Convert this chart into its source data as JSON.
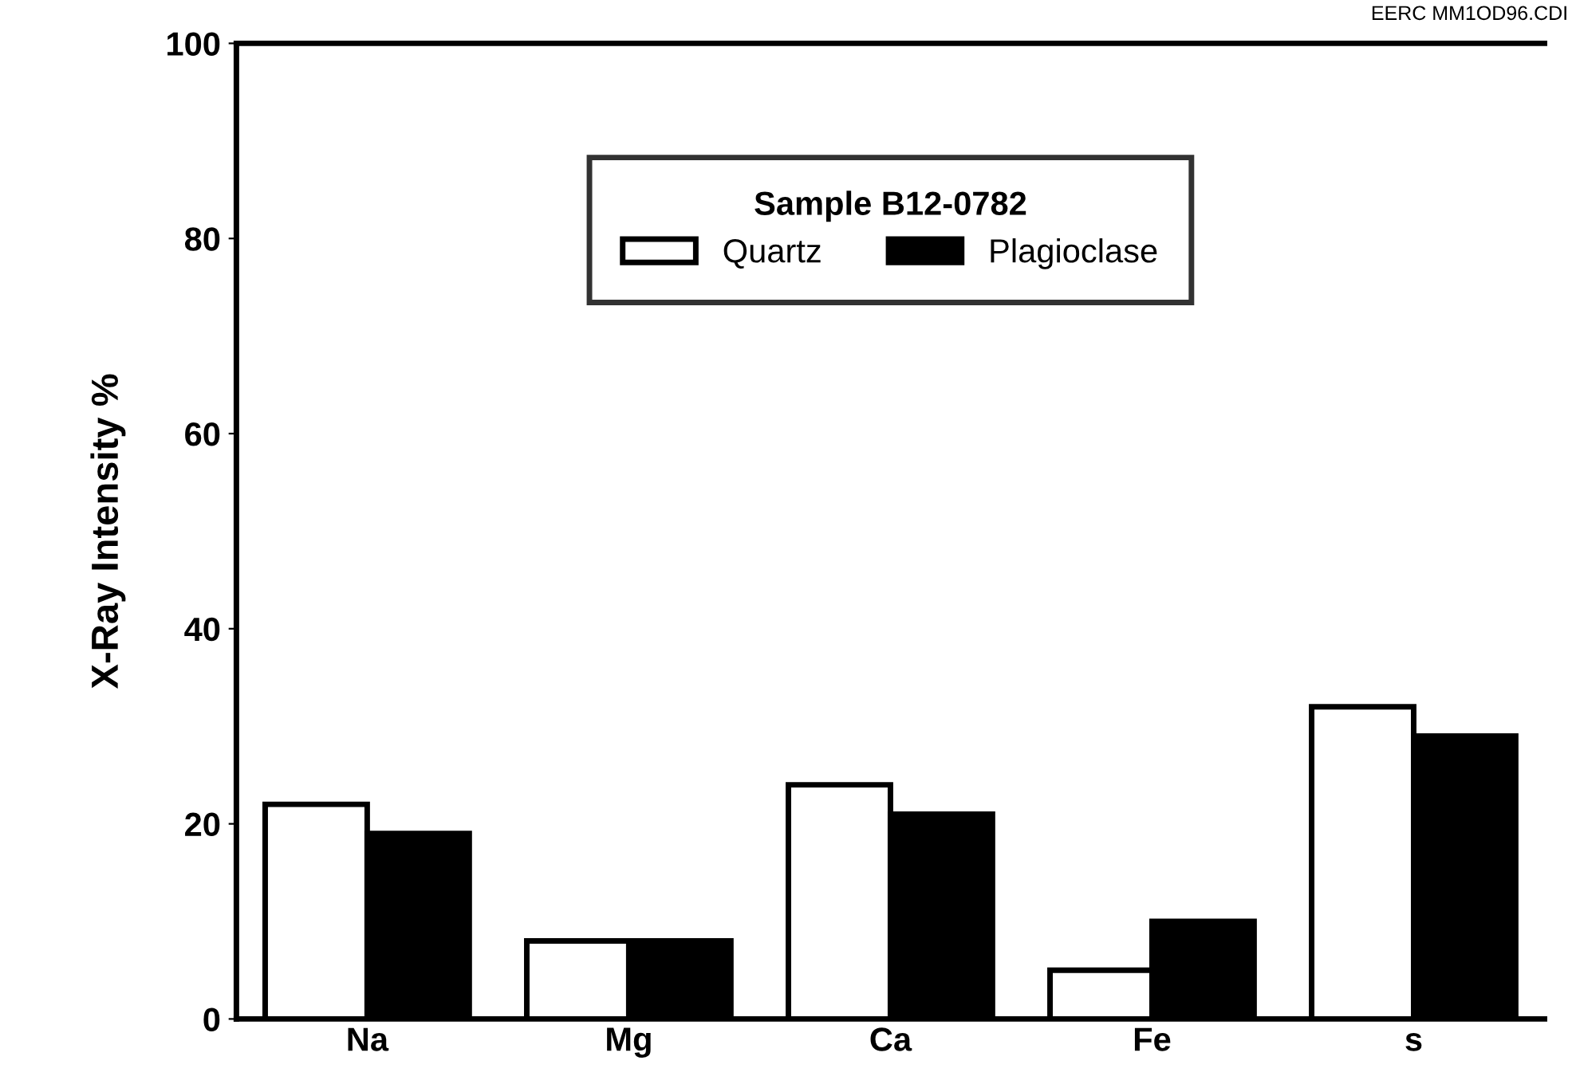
{
  "chart_data": {
    "type": "bar",
    "ylabel": "X-Ray Intensity %",
    "legend_title": "Sample B12-0782",
    "legend": "top",
    "categories": [
      "Na",
      "Mg",
      "Ca",
      "Fe",
      "s"
    ],
    "series": [
      {
        "name": "Quartz",
        "color": "#ffffff",
        "values": [
          22,
          8,
          24,
          5,
          32
        ]
      },
      {
        "name": "Plagioclase",
        "color": "#000000",
        "values": [
          19,
          8,
          21,
          10,
          29
        ]
      }
    ],
    "ylim": [
      0,
      100
    ],
    "yticks": [
      0,
      20,
      40,
      60,
      80,
      100
    ],
    "grid": false,
    "annotations": [
      "EERC MM1OD96.CDI"
    ]
  }
}
